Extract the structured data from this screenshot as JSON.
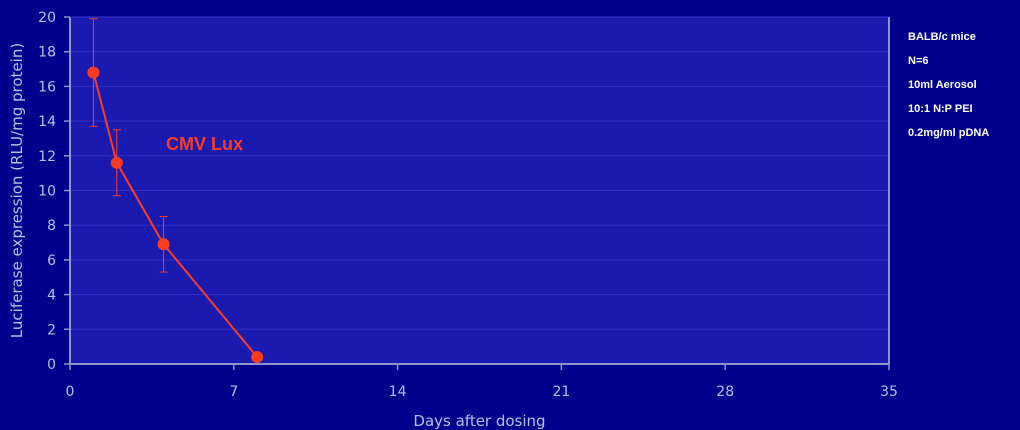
{
  "chart_data": {
    "type": "line",
    "xlabel": "Days after dosing",
    "ylabel": "Luciferase expression (RLU/mg protein)",
    "xlim": [
      0,
      35
    ],
    "ylim": [
      0,
      20
    ],
    "xticks": [
      "0",
      "7",
      "14",
      "21",
      "28",
      "35"
    ],
    "yticks": [
      "0",
      "2",
      "4",
      "6",
      "8",
      "10",
      "12",
      "14",
      "16",
      "18",
      "20"
    ],
    "grid": "horizontal",
    "series": [
      {
        "name": "CMV Lux",
        "x": [
          1,
          2,
          4,
          8
        ],
        "y": [
          16.8,
          11.6,
          6.9,
          0.4
        ],
        "error": [
          3.1,
          1.9,
          1.6,
          0.1
        ],
        "color": "#ff3b1f"
      }
    ],
    "annotations": [
      "BALB/c mice",
      "N=6",
      "10ml Aerosol",
      "10:1 N:P PEI",
      "0.2mg/ml pDNA"
    ]
  },
  "colors": {
    "background": "#00008c",
    "plot_area": "#1a1ab0",
    "series": "#ff3b1f",
    "axis": "#8f95c8",
    "text": "#b8bfe6"
  }
}
